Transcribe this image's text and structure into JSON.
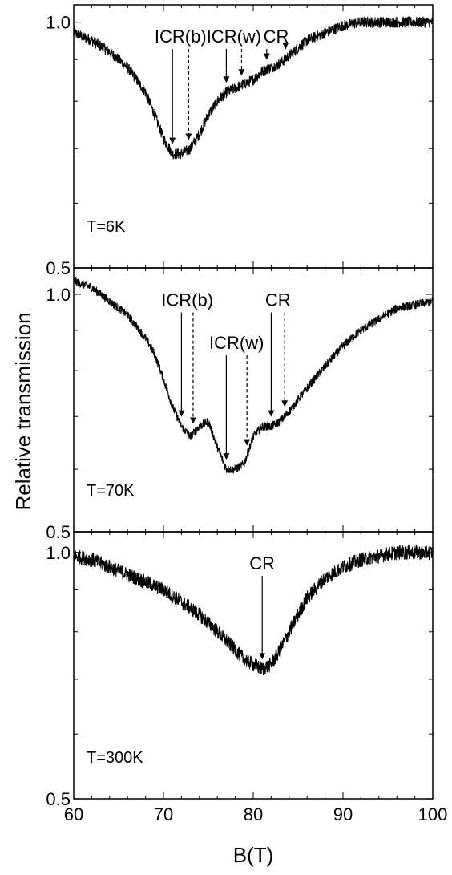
{
  "chart_data": {
    "type": "line",
    "ylabel": "Relative transmission",
    "xlabel": "B(T)",
    "xlim": [
      60,
      100
    ],
    "xticks": [
      60,
      70,
      80,
      90,
      100
    ],
    "y_scale": "log",
    "grid": false,
    "panels": [
      {
        "temperature_label": "T=6K",
        "ylim": [
          0.5,
          1.05
        ],
        "yticks": [
          0.5,
          1.0
        ],
        "ytick_labels": [
          "0.5",
          "1.0"
        ],
        "series": [
          {
            "x": [
              60,
              62,
              64,
              66,
              68,
              69,
              70,
              71,
              72,
              73,
              74,
              75,
              76,
              77,
              78,
              79,
              80,
              81,
              82,
              83,
              84,
              85,
              86,
              88,
              90,
              92,
              94,
              96,
              98,
              100
            ],
            "y": [
              0.97,
              0.95,
              0.92,
              0.88,
              0.82,
              0.77,
              0.72,
              0.69,
              0.69,
              0.7,
              0.73,
              0.77,
              0.8,
              0.82,
              0.83,
              0.84,
              0.85,
              0.87,
              0.88,
              0.89,
              0.91,
              0.93,
              0.95,
              0.97,
              0.99,
              1.0,
              1.0,
              1.0,
              1.0,
              1.0
            ],
            "noise": 0.015
          }
        ],
        "annotations": [
          {
            "label": "ICR(b)",
            "solid_x": 71.0,
            "dashed_x": 72.8
          },
          {
            "label": "ICR(w)",
            "solid_x": 77.0,
            "dashed_x": 78.7
          },
          {
            "label": "CR",
            "solid_x": 81.5,
            "dashed_x": 83.6
          }
        ]
      },
      {
        "temperature_label": "T=70K",
        "ylim": [
          0.5,
          1.08
        ],
        "yticks": [
          0.5,
          1.0
        ],
        "ytick_labels": [
          "0.5",
          "1.0"
        ],
        "series": [
          {
            "x": [
              60,
              62,
              64,
              66,
              68,
              69,
              70,
              71,
              72,
              73,
              74,
              75,
              76,
              77,
              78,
              79,
              80,
              81,
              82,
              83,
              84,
              86,
              88,
              90,
              92,
              94,
              96,
              98,
              100
            ],
            "y": [
              1.04,
              1.02,
              0.98,
              0.94,
              0.88,
              0.84,
              0.78,
              0.72,
              0.68,
              0.66,
              0.68,
              0.69,
              0.64,
              0.6,
              0.6,
              0.61,
              0.66,
              0.68,
              0.68,
              0.69,
              0.71,
              0.76,
              0.81,
              0.86,
              0.9,
              0.93,
              0.96,
              0.97,
              0.98
            ],
            "noise": 0.012
          }
        ],
        "annotations": [
          {
            "label": "ICR(b)",
            "solid_x": 72.0,
            "dashed_x": 73.3
          },
          {
            "label": "ICR(w)",
            "solid_x": 77.0,
            "dashed_x": 79.3
          },
          {
            "label": "CR",
            "solid_x": 82.0,
            "dashed_x": 83.5
          }
        ]
      },
      {
        "temperature_label": "T=300K",
        "ylim": [
          0.5,
          1.06
        ],
        "yticks": [
          0.5,
          1.0
        ],
        "ytick_labels": [
          "0.5",
          "1.0"
        ],
        "series": [
          {
            "x": [
              60,
              62,
              64,
              66,
              68,
              70,
              72,
              74,
              76,
              78,
              79,
              80,
              81,
              82,
              83,
              84,
              85,
              86,
              88,
              90,
              92,
              94,
              96,
              98,
              100
            ],
            "y": [
              0.99,
              0.98,
              0.96,
              0.94,
              0.92,
              0.9,
              0.87,
              0.84,
              0.8,
              0.76,
              0.74,
              0.73,
              0.72,
              0.73,
              0.76,
              0.8,
              0.84,
              0.88,
              0.93,
              0.96,
              0.98,
              0.99,
              1.0,
              1.0,
              1.0
            ],
            "noise": 0.02
          }
        ],
        "annotations": [
          {
            "label": "CR",
            "solid_x": 81.0
          }
        ]
      }
    ]
  }
}
